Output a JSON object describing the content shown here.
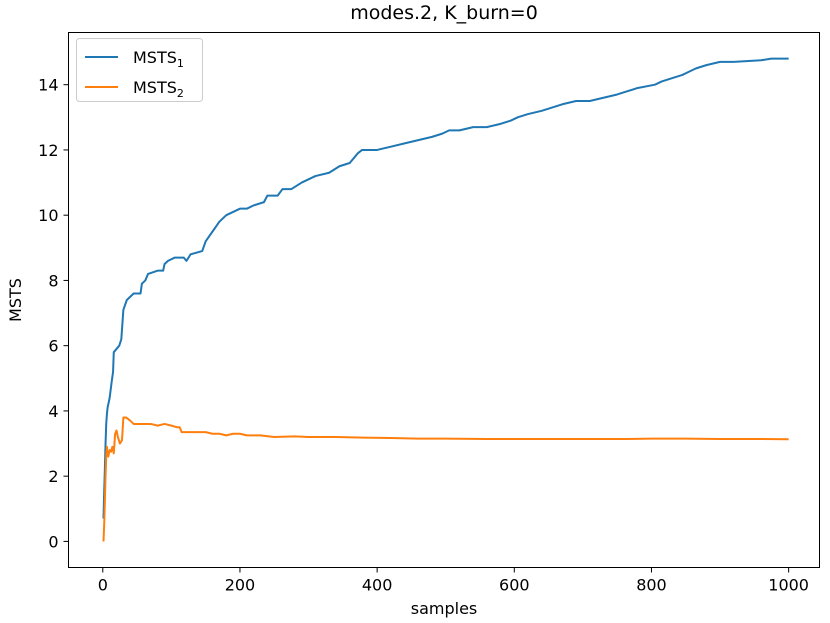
{
  "chart_data": {
    "type": "line",
    "title": "modes.2, K_burn=0",
    "xlabel": "samples",
    "ylabel": "MSTS",
    "xlim": [
      -50,
      1045
    ],
    "ylim": [
      -0.8,
      15.6
    ],
    "xticks": [
      0,
      200,
      400,
      600,
      800,
      1000
    ],
    "xtick_labels": [
      "0",
      "200",
      "400",
      "600",
      "800",
      "1000"
    ],
    "yticks": [
      0,
      2,
      4,
      6,
      8,
      10,
      12,
      14
    ],
    "ytick_labels": [
      "0",
      "2",
      "4",
      "6",
      "8",
      "10",
      "12",
      "14"
    ],
    "grid": false,
    "legend_position": "top-left",
    "series": [
      {
        "name": "MSTS",
        "name_sub": "1",
        "color": "#1f77b4",
        "points": [
          [
            1,
            0.7
          ],
          [
            2,
            1.5
          ],
          [
            3,
            2.2
          ],
          [
            4,
            3.0
          ],
          [
            5,
            3.6
          ],
          [
            6,
            3.9
          ],
          [
            7,
            4.1
          ],
          [
            10,
            4.4
          ],
          [
            13,
            4.9
          ],
          [
            15,
            5.2
          ],
          [
            16,
            5.8
          ],
          [
            20,
            5.9
          ],
          [
            24,
            6.0
          ],
          [
            27,
            6.2
          ],
          [
            30,
            7.1
          ],
          [
            35,
            7.4
          ],
          [
            40,
            7.5
          ],
          [
            45,
            7.6
          ],
          [
            55,
            7.6
          ],
          [
            57,
            7.9
          ],
          [
            62,
            8.0
          ],
          [
            66,
            8.2
          ],
          [
            80,
            8.3
          ],
          [
            88,
            8.3
          ],
          [
            90,
            8.5
          ],
          [
            95,
            8.6
          ],
          [
            105,
            8.7
          ],
          [
            118,
            8.7
          ],
          [
            122,
            8.6
          ],
          [
            128,
            8.8
          ],
          [
            145,
            8.9
          ],
          [
            150,
            9.2
          ],
          [
            160,
            9.5
          ],
          [
            170,
            9.8
          ],
          [
            180,
            10.0
          ],
          [
            190,
            10.1
          ],
          [
            200,
            10.2
          ],
          [
            210,
            10.2
          ],
          [
            220,
            10.3
          ],
          [
            235,
            10.4
          ],
          [
            240,
            10.6
          ],
          [
            255,
            10.6
          ],
          [
            262,
            10.8
          ],
          [
            275,
            10.8
          ],
          [
            290,
            11.0
          ],
          [
            300,
            11.1
          ],
          [
            310,
            11.2
          ],
          [
            330,
            11.3
          ],
          [
            345,
            11.5
          ],
          [
            360,
            11.6
          ],
          [
            372,
            11.9
          ],
          [
            378,
            12.0
          ],
          [
            400,
            12.0
          ],
          [
            420,
            12.1
          ],
          [
            440,
            12.2
          ],
          [
            460,
            12.3
          ],
          [
            480,
            12.4
          ],
          [
            495,
            12.5
          ],
          [
            505,
            12.6
          ],
          [
            520,
            12.6
          ],
          [
            540,
            12.7
          ],
          [
            560,
            12.7
          ],
          [
            580,
            12.8
          ],
          [
            595,
            12.9
          ],
          [
            605,
            13.0
          ],
          [
            620,
            13.1
          ],
          [
            640,
            13.2
          ],
          [
            655,
            13.3
          ],
          [
            670,
            13.4
          ],
          [
            690,
            13.5
          ],
          [
            710,
            13.5
          ],
          [
            730,
            13.6
          ],
          [
            750,
            13.7
          ],
          [
            765,
            13.8
          ],
          [
            780,
            13.9
          ],
          [
            805,
            14.0
          ],
          [
            815,
            14.1
          ],
          [
            830,
            14.2
          ],
          [
            845,
            14.3
          ],
          [
            855,
            14.4
          ],
          [
            865,
            14.5
          ],
          [
            880,
            14.6
          ],
          [
            900,
            14.7
          ],
          [
            920,
            14.7
          ],
          [
            960,
            14.75
          ],
          [
            975,
            14.8
          ],
          [
            1000,
            14.8
          ]
        ]
      },
      {
        "name": "MSTS",
        "name_sub": "2",
        "color": "#ff7f0e",
        "points": [
          [
            1,
            0.0
          ],
          [
            2,
            0.5
          ],
          [
            3,
            1.2
          ],
          [
            4,
            2.0
          ],
          [
            5,
            2.6
          ],
          [
            6,
            2.9
          ],
          [
            7,
            2.7
          ],
          [
            8,
            2.6
          ],
          [
            10,
            2.8
          ],
          [
            12,
            2.75
          ],
          [
            14,
            2.9
          ],
          [
            16,
            2.7
          ],
          [
            18,
            3.3
          ],
          [
            20,
            3.4
          ],
          [
            22,
            3.2
          ],
          [
            25,
            3.0
          ],
          [
            28,
            3.1
          ],
          [
            30,
            3.8
          ],
          [
            34,
            3.8
          ],
          [
            40,
            3.7
          ],
          [
            45,
            3.6
          ],
          [
            55,
            3.6
          ],
          [
            62,
            3.6
          ],
          [
            70,
            3.6
          ],
          [
            80,
            3.55
          ],
          [
            90,
            3.6
          ],
          [
            100,
            3.55
          ],
          [
            108,
            3.5
          ],
          [
            112,
            3.5
          ],
          [
            115,
            3.35
          ],
          [
            140,
            3.35
          ],
          [
            150,
            3.35
          ],
          [
            160,
            3.3
          ],
          [
            170,
            3.3
          ],
          [
            180,
            3.25
          ],
          [
            190,
            3.3
          ],
          [
            200,
            3.3
          ],
          [
            210,
            3.25
          ],
          [
            230,
            3.25
          ],
          [
            250,
            3.2
          ],
          [
            280,
            3.22
          ],
          [
            300,
            3.2
          ],
          [
            340,
            3.2
          ],
          [
            380,
            3.18
          ],
          [
            420,
            3.17
          ],
          [
            460,
            3.15
          ],
          [
            500,
            3.15
          ],
          [
            560,
            3.14
          ],
          [
            600,
            3.14
          ],
          [
            660,
            3.14
          ],
          [
            700,
            3.14
          ],
          [
            760,
            3.14
          ],
          [
            800,
            3.15
          ],
          [
            850,
            3.15
          ],
          [
            900,
            3.14
          ],
          [
            950,
            3.14
          ],
          [
            1000,
            3.13
          ]
        ]
      }
    ]
  }
}
